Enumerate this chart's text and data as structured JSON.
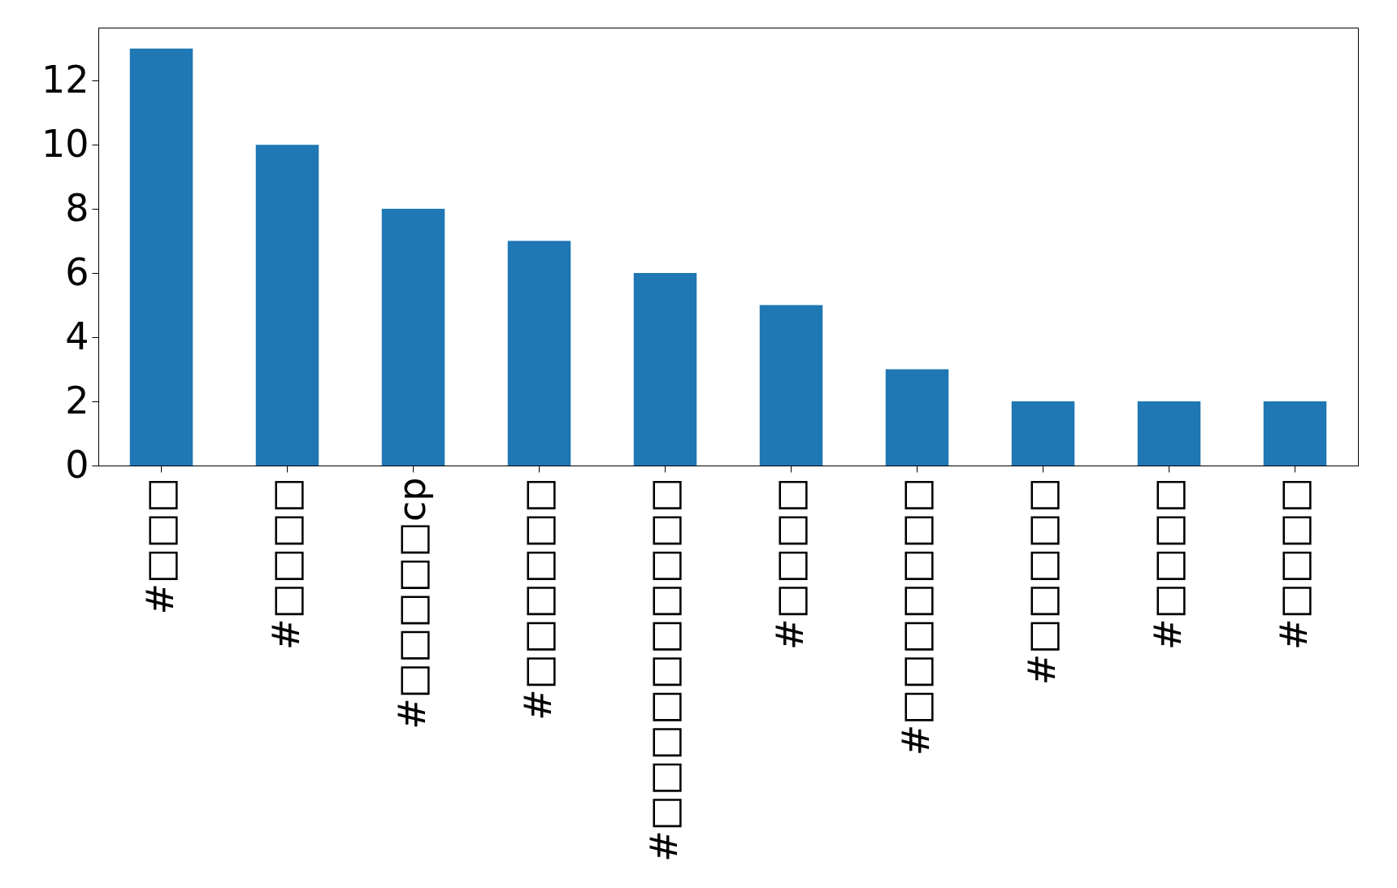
{
  "chart_data": {
    "type": "bar",
    "categories": [
      "#□□□",
      "#□□□□",
      "#□□□□□cp",
      "#□□□□□□",
      "#□□□□□□□□□□",
      "#□□□□",
      "#□□□□□□□",
      "#□□□□□",
      "#□□□□",
      "#□□□□"
    ],
    "values": [
      13,
      10,
      8,
      7,
      6,
      5,
      3,
      2,
      2,
      2
    ],
    "color": "#1f77b4",
    "ylim": [
      0,
      13.65
    ],
    "yticks": [
      0,
      2,
      4,
      6,
      8,
      10,
      12
    ],
    "grid": false
  }
}
